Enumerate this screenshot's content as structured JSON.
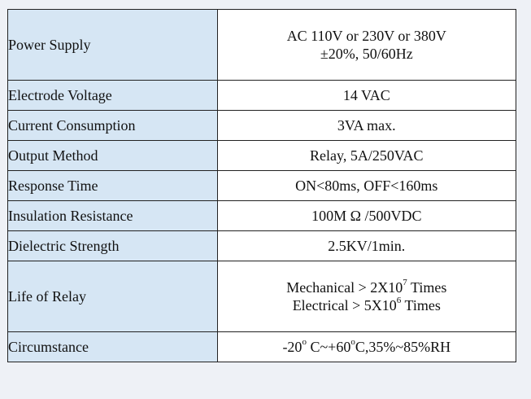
{
  "table": {
    "rows": [
      {
        "label": "Power Supply",
        "value_lines": [
          "AC 110V or 230V or 380V",
          "±20%,  50/60Hz"
        ]
      },
      {
        "label": "Electrode Voltage",
        "value": "14 VAC"
      },
      {
        "label": "Current Consumption",
        "value": "3VA max."
      },
      {
        "label": "Output Method",
        "value": "Relay, 5A/250VAC"
      },
      {
        "label": "Response Time",
        "value": "ON<80ms, OFF<160ms"
      },
      {
        "label": "Insulation Resistance",
        "value": "100M Ω /500VDC"
      },
      {
        "label": "Dielectric Strength",
        "value": "2.5KV/1min."
      },
      {
        "label": "Life of Relay",
        "mechanical": {
          "prefix": "Mechanical > 2X10",
          "exp": "7",
          "suffix": " Times"
        },
        "electrical": {
          "prefix": "Electrical > 5X10",
          "exp": "6",
          "suffix": " Times"
        }
      },
      {
        "label": "Circumstance",
        "circ": {
          "p1": "-20",
          "deg1": "o",
          "p2": " C~+60",
          "deg2": "o",
          "p3": "C,35%~85%RH"
        }
      }
    ]
  }
}
